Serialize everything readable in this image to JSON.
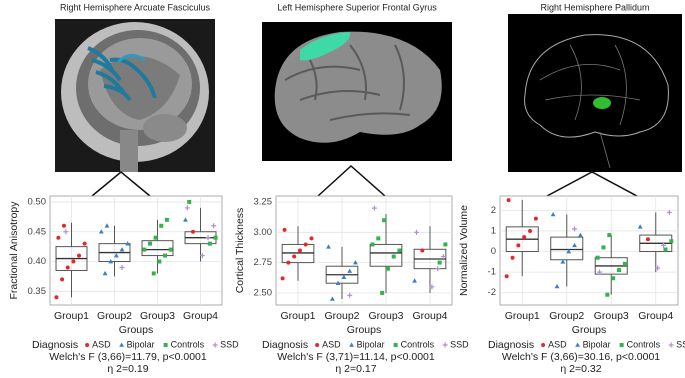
{
  "chart_data": [
    {
      "type": "box",
      "title": "Right Hemisphere Arcuate Fasciculus",
      "ylabel": "Fractional Anisotropy",
      "xlabel": "Groups",
      "categories": [
        "Group1",
        "Group2",
        "Group3",
        "Group4"
      ],
      "ylim": [
        0.327,
        0.51
      ],
      "yticks": [
        0.35,
        {
          "value": 0.4,
          "label": "0.40"
        },
        0.45,
        {
          "value": 0.5,
          "label": "0.50"
        }
      ],
      "grid": true,
      "boxes": [
        {
          "low": 0.34,
          "q1": 0.385,
          "median": 0.405,
          "q3": 0.425,
          "high": 0.465
        },
        {
          "low": 0.375,
          "q1": 0.4,
          "median": 0.415,
          "q3": 0.43,
          "high": 0.46
        },
        {
          "low": 0.38,
          "q1": 0.41,
          "median": 0.42,
          "q3": 0.435,
          "high": 0.47
        },
        {
          "low": 0.4,
          "q1": 0.43,
          "median": 0.44,
          "q3": 0.45,
          "high": 0.49
        }
      ],
      "legend_title": "Diagnosis",
      "series": [
        {
          "name": "ASD",
          "color": "#e8262a",
          "marker": "circle",
          "values": [
            [
              0.34,
              0.37,
              0.39,
              0.4,
              0.41,
              0.43,
              0.44,
              0.46
            ],
            [],
            [],
            [
              0.45
            ]
          ]
        },
        {
          "name": "Bipolar",
          "color": "#3a7dc9",
          "marker": "triangle",
          "values": [
            [],
            [
              0.38,
              0.4,
              0.41,
              0.42,
              0.43,
              0.45,
              0.46
            ],
            [],
            [
              0.47
            ]
          ]
        },
        {
          "name": "Controls",
          "color": "#33b34a",
          "marker": "square",
          "values": [
            [],
            [],
            [
              0.38,
              0.4,
              0.41,
              0.42,
              0.42,
              0.43,
              0.44,
              0.46,
              0.47
            ],
            [
              0.43,
              0.44,
              0.5
            ]
          ]
        },
        {
          "name": "SSD",
          "color": "#b48cd2",
          "marker": "cross",
          "values": [
            [
              0.45
            ],
            [
              0.39
            ],
            [],
            [
              0.41,
              0.44,
              0.46,
              0.49
            ]
          ]
        }
      ],
      "annotations": [
        "Welch's F (3,66)=11.79, p<0.0001",
        "η 2=0.19"
      ]
    },
    {
      "type": "box",
      "title": "Left Hemisphere Superior Frontal Gyrus",
      "ylabel": "Cortical Thickness",
      "xlabel": "Groups",
      "categories": [
        "Group1",
        "Group2",
        "Group3",
        "Group4"
      ],
      "ylim": [
        2.4,
        3.3
      ],
      "yticks": [
        {
          "value": 2.5,
          "label": "2.50"
        },
        2.75,
        {
          "value": 3,
          "label": "3.00"
        },
        3.25
      ],
      "grid": true,
      "boxes": [
        {
          "low": 2.6,
          "q1": 2.75,
          "median": 2.83,
          "q3": 2.9,
          "high": 3.05
        },
        {
          "low": 2.45,
          "q1": 2.58,
          "median": 2.65,
          "q3": 2.72,
          "high": 2.88
        },
        {
          "low": 2.5,
          "q1": 2.72,
          "median": 2.83,
          "q3": 2.9,
          "high": 3.15
        },
        {
          "low": 2.5,
          "q1": 2.7,
          "median": 2.78,
          "q3": 2.86,
          "high": 3.05
        }
      ],
      "legend_title": "Diagnosis",
      "series": [
        {
          "name": "ASD",
          "color": "#e8262a",
          "marker": "circle",
          "values": [
            [
              2.62,
              2.75,
              2.8,
              2.85,
              2.9,
              2.95,
              3.02
            ],
            [],
            [],
            [
              2.85
            ]
          ]
        },
        {
          "name": "Bipolar",
          "color": "#3a7dc9",
          "marker": "triangle",
          "values": [
            [],
            [
              2.45,
              2.58,
              2.63,
              2.68,
              2.75,
              2.88
            ],
            [],
            [
              2.6
            ]
          ]
        },
        {
          "name": "Controls",
          "color": "#33b34a",
          "marker": "square",
          "values": [
            [],
            [],
            [
              2.5,
              2.7,
              2.8,
              2.85,
              2.9,
              2.95,
              3.1
            ],
            [
              2.75,
              2.9
            ]
          ]
        },
        {
          "name": "SSD",
          "color": "#b48cd2",
          "marker": "cross",
          "values": [
            [],
            [
              2.48
            ],
            [
              3.2
            ],
            [
              2.55,
              2.7,
              2.8,
              3
            ]
          ]
        }
      ],
      "annotations": [
        "Welch's F (3,71)=11.14, p<0.0001",
        "η 2=0.17"
      ]
    },
    {
      "type": "box",
      "title": "Right Hemisphere Pallidum",
      "ylabel": "Normalized Volume",
      "xlabel": "Groups",
      "categories": [
        "Group1",
        "Group2",
        "Group3",
        "Group4"
      ],
      "ylim": [
        -2.6,
        2.7
      ],
      "yticks": [
        -2,
        -1,
        0,
        1,
        2
      ],
      "grid": true,
      "boxes": [
        {
          "low": -1.2,
          "q1": 0,
          "median": 0.6,
          "q3": 1.2,
          "high": 2.5
        },
        {
          "low": -1.7,
          "q1": -0.4,
          "median": 0.1,
          "q3": 0.7,
          "high": 1.8
        },
        {
          "low": -2.1,
          "q1": -1.1,
          "median": -0.7,
          "q3": -0.3,
          "high": 0.8
        },
        {
          "low": -1,
          "q1": 0,
          "median": 0.4,
          "q3": 0.8,
          "high": 1.9
        }
      ],
      "legend_title": "Diagnosis",
      "series": [
        {
          "name": "ASD",
          "color": "#e8262a",
          "marker": "circle",
          "values": [
            [
              -1.2,
              -0.3,
              0.3,
              0.7,
              1,
              1.6,
              2.5
            ],
            [],
            [],
            [
              0.6
            ]
          ]
        },
        {
          "name": "Bipolar",
          "color": "#3a7dc9",
          "marker": "triangle",
          "values": [
            [],
            [
              -1.7,
              -0.5,
              0,
              0.3,
              0.8,
              1.8
            ],
            [],
            [
              1.2
            ]
          ]
        },
        {
          "name": "Controls",
          "color": "#33b34a",
          "marker": "square",
          "values": [
            [],
            [],
            [
              -2.1,
              -1.3,
              -0.9,
              -0.6,
              -0.3,
              0.2,
              0.8
            ],
            [
              0.1,
              0.5
            ]
          ]
        },
        {
          "name": "SSD",
          "color": "#b48cd2",
          "marker": "cross",
          "values": [
            [],
            [
              1.1
            ],
            [
              -1
            ],
            [
              -0.8,
              0.3,
              1.9
            ]
          ]
        }
      ],
      "annotations": [
        "Welch's F (3,66)=30.16, p<0.0001",
        "η 2=0.32"
      ]
    }
  ]
}
